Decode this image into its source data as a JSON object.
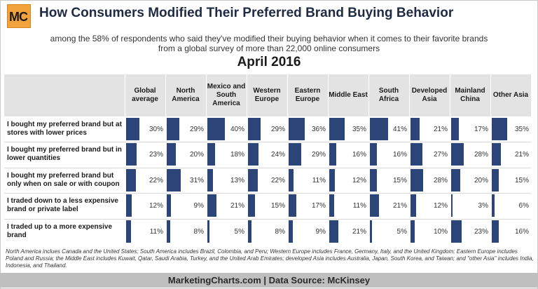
{
  "header": {
    "logo_text": "MC",
    "title": "How Consumers Modified Their Preferred Brand Buying Behavior",
    "subtitle_line1": "among the 58% of respondents who said they've modified their buying behavior when it comes to their favorite brands",
    "subtitle_line2": "from a global survey of more than 22,000 online consumers",
    "date": "April 2016"
  },
  "chart_data": {
    "type": "table",
    "categories": [
      "Global average",
      "North America",
      "Mexico and South America",
      "Western Europe",
      "Eastern Europe",
      "Middle East",
      "South Africa",
      "Developed Asia",
      "Mainland China",
      "Other Asia"
    ],
    "series": [
      {
        "name": "I bought my preferred brand but at stores with lower prices",
        "values": [
          30,
          29,
          40,
          29,
          36,
          35,
          41,
          21,
          17,
          35
        ]
      },
      {
        "name": "I bought my preferred brand but in lower quantities",
        "values": [
          23,
          20,
          18,
          24,
          29,
          16,
          16,
          27,
          28,
          21
        ]
      },
      {
        "name": "I bought my preferred brand but only when on sale or with coupon",
        "values": [
          22,
          31,
          13,
          22,
          11,
          12,
          15,
          28,
          20,
          15
        ]
      },
      {
        "name": "I traded down to a less expensive brand or private label",
        "values": [
          12,
          9,
          21,
          15,
          17,
          11,
          21,
          12,
          3,
          6
        ]
      },
      {
        "name": "I traded up to a more expensive brand",
        "values": [
          11,
          8,
          5,
          8,
          9,
          21,
          5,
          10,
          23,
          16
        ]
      }
    ],
    "value_suffix": "%",
    "bar_color": "#2b4578",
    "max_value": 41
  },
  "footnote": "North America inclues Canada and the United States; South America  includes Brazil, Colombia, and Peru; Western Europe includes France, Germany, Italy, and the United Kingdom; Eastern Europe includes Poland and Russia; the Middle East  includes Kuwait, Qatar, Saudi Arabia, Turkey, and the United Arab Emirates; developed Asia  includes Australia, Japan, South Korea, and Taiwan; and \"other Asia\"  includes India, Indonesia, and Thailand.",
  "footer": "MarketingCharts.com | Data Source: McKinsey"
}
